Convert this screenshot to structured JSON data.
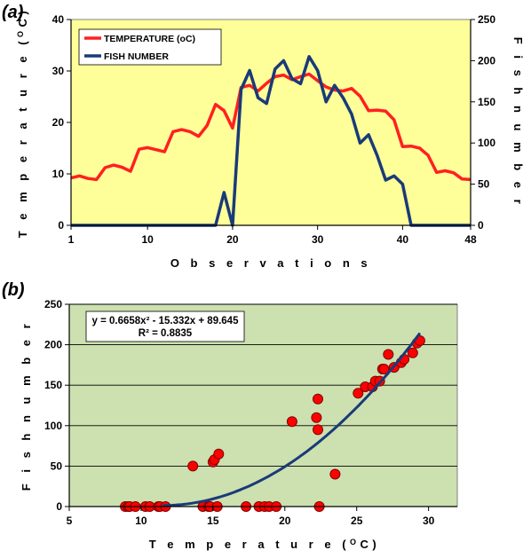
{
  "chart_data": [
    {
      "type": "line",
      "panel_label": "(a)",
      "xlabel": "O b s e r v a t i o n s",
      "ylabel": "T e m p e r a t u r e   (",
      "ylabel_sup": "O",
      "ylabel_end": "C)",
      "ylabel_right": "F i s h     n u m b e r",
      "xlim": [
        1,
        48
      ],
      "ylim": [
        0,
        40
      ],
      "y2lim": [
        0,
        250
      ],
      "x_ticks": [
        1,
        10,
        20,
        30,
        40,
        48
      ],
      "y_ticks": [
        0,
        10,
        20,
        30,
        40
      ],
      "y2_ticks": [
        0,
        50,
        100,
        150,
        200,
        250
      ],
      "grid": false,
      "legend_position": "top-left",
      "background": "#ffff99",
      "colors": {
        "temperature": "#ff2020",
        "fish": "#1a3a78"
      },
      "legend": [
        "TEMPERATURE (oC)",
        "FISH NUMBER"
      ],
      "x": [
        1,
        2,
        3,
        4,
        5,
        6,
        7,
        8,
        9,
        10,
        11,
        12,
        13,
        14,
        15,
        16,
        17,
        18,
        19,
        20,
        21,
        22,
        23,
        24,
        25,
        26,
        27,
        28,
        29,
        30,
        31,
        32,
        33,
        34,
        35,
        36,
        37,
        38,
        39,
        40,
        41,
        42,
        43,
        44,
        45,
        46,
        47,
        48
      ],
      "series": [
        {
          "name": "TEMPERATURE (oC)",
          "axis": "left",
          "values": [
            9.2,
            9.6,
            9.1,
            8.9,
            11.2,
            11.7,
            11.3,
            10.5,
            14.8,
            15.1,
            14.7,
            14.3,
            18.2,
            18.6,
            18.2,
            17.3,
            19.4,
            23.5,
            22.3,
            18.9,
            26.8,
            27.2,
            26.1,
            27.6,
            28.9,
            29.2,
            28.3,
            28.9,
            29.4,
            28.1,
            26.9,
            26.3,
            26.1,
            26.6,
            25.1,
            22.3,
            22.4,
            22.2,
            20.5,
            15.3,
            15.4,
            15.0,
            13.6,
            10.3,
            10.6,
            10.2,
            9.0,
            8.9
          ]
        },
        {
          "name": "FISH NUMBER",
          "axis": "right",
          "values": [
            0,
            0,
            0,
            0,
            0,
            0,
            0,
            0,
            0,
            0,
            0,
            0,
            0,
            0,
            0,
            0,
            0,
            0,
            40,
            0,
            165,
            188,
            155,
            148,
            190,
            200,
            178,
            172,
            205,
            188,
            150,
            170,
            155,
            135,
            100,
            110,
            85,
            55,
            60,
            50,
            0,
            0,
            0,
            0,
            0,
            0,
            0,
            0
          ]
        }
      ]
    },
    {
      "type": "scatter",
      "panel_label": "(b)",
      "xlabel": "T e m p e r a t u r e   (",
      "xlabel_sup": "O",
      "xlabel_end": "C)",
      "ylabel": "F i s h     n u m b e r",
      "xlim": [
        5,
        32
      ],
      "ylim": [
        0,
        250
      ],
      "x_ticks": [
        5,
        10,
        15,
        20,
        25,
        30
      ],
      "y_ticks": [
        0,
        50,
        100,
        150,
        200,
        250
      ],
      "grid": true,
      "background": "#cce0b0",
      "colors": {
        "points": "#ff0000",
        "trend": "#1a3a78"
      },
      "equation": "y = 0.6658x² - 15.332x + 89.645",
      "r_squared": "R² = 0.8835",
      "trend_coefficients": [
        0.6658,
        -15.332,
        89.645
      ],
      "trend_range": [
        11.5,
        29.4
      ],
      "points": [
        [
          8.9,
          0
        ],
        [
          9.1,
          0
        ],
        [
          9.2,
          0
        ],
        [
          9.6,
          0
        ],
        [
          10.3,
          0
        ],
        [
          10.6,
          0
        ],
        [
          11.2,
          0
        ],
        [
          11.3,
          0
        ],
        [
          11.7,
          0
        ],
        [
          13.6,
          50
        ],
        [
          14.3,
          0
        ],
        [
          14.7,
          0
        ],
        [
          14.8,
          0
        ],
        [
          15.0,
          55
        ],
        [
          15.1,
          58
        ],
        [
          15.3,
          0
        ],
        [
          15.4,
          65
        ],
        [
          17.3,
          0
        ],
        [
          18.2,
          0
        ],
        [
          18.6,
          0
        ],
        [
          18.9,
          0
        ],
        [
          19.4,
          0
        ],
        [
          20.5,
          105
        ],
        [
          22.2,
          110
        ],
        [
          22.3,
          95
        ],
        [
          22.4,
          0
        ],
        [
          22.3,
          133
        ],
        [
          23.5,
          40
        ],
        [
          25.1,
          140
        ],
        [
          25.6,
          148
        ],
        [
          26.1,
          148
        ],
        [
          26.3,
          155
        ],
        [
          26.6,
          155
        ],
        [
          26.8,
          170
        ],
        [
          27.2,
          188
        ],
        [
          26.9,
          170
        ],
        [
          27.6,
          172
        ],
        [
          28.1,
          178
        ],
        [
          28.3,
          182
        ],
        [
          28.9,
          190
        ],
        [
          29.2,
          202
        ],
        [
          29.4,
          205
        ]
      ]
    }
  ]
}
